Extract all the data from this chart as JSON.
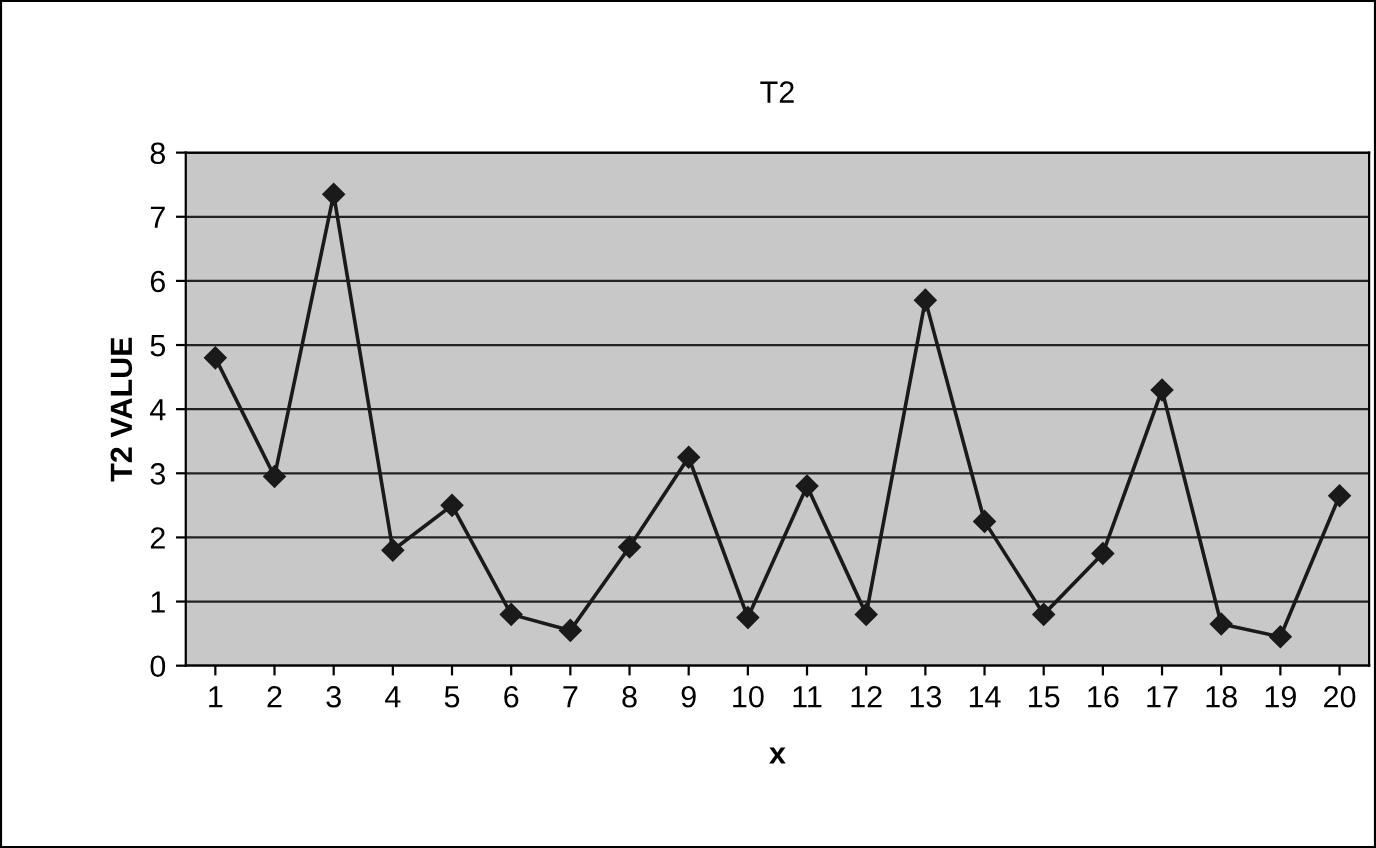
{
  "chart_data": {
    "type": "line",
    "title": "T2",
    "xlabel": "x",
    "ylabel": "T2 VALUE",
    "categories": [
      "1",
      "2",
      "3",
      "4",
      "5",
      "6",
      "7",
      "8",
      "9",
      "10",
      "11",
      "12",
      "13",
      "14",
      "15",
      "16",
      "17",
      "18",
      "19",
      "20"
    ],
    "series": [
      {
        "color": "#1a1a1a",
        "values": [
          4.8,
          2.95,
          7.35,
          1.8,
          2.5,
          0.8,
          0.55,
          1.85,
          3.25,
          0.75,
          2.8,
          0.8,
          5.7,
          2.25,
          0.8,
          1.75,
          4.3,
          0.65,
          0.45,
          2.65
        ]
      }
    ],
    "ylim": [
      0,
      8
    ],
    "yticks": [
      0,
      1,
      2,
      3,
      4,
      5,
      6,
      7,
      8
    ],
    "grid": "y",
    "marker": "diamond",
    "line_style": "solid",
    "legend": false
  }
}
